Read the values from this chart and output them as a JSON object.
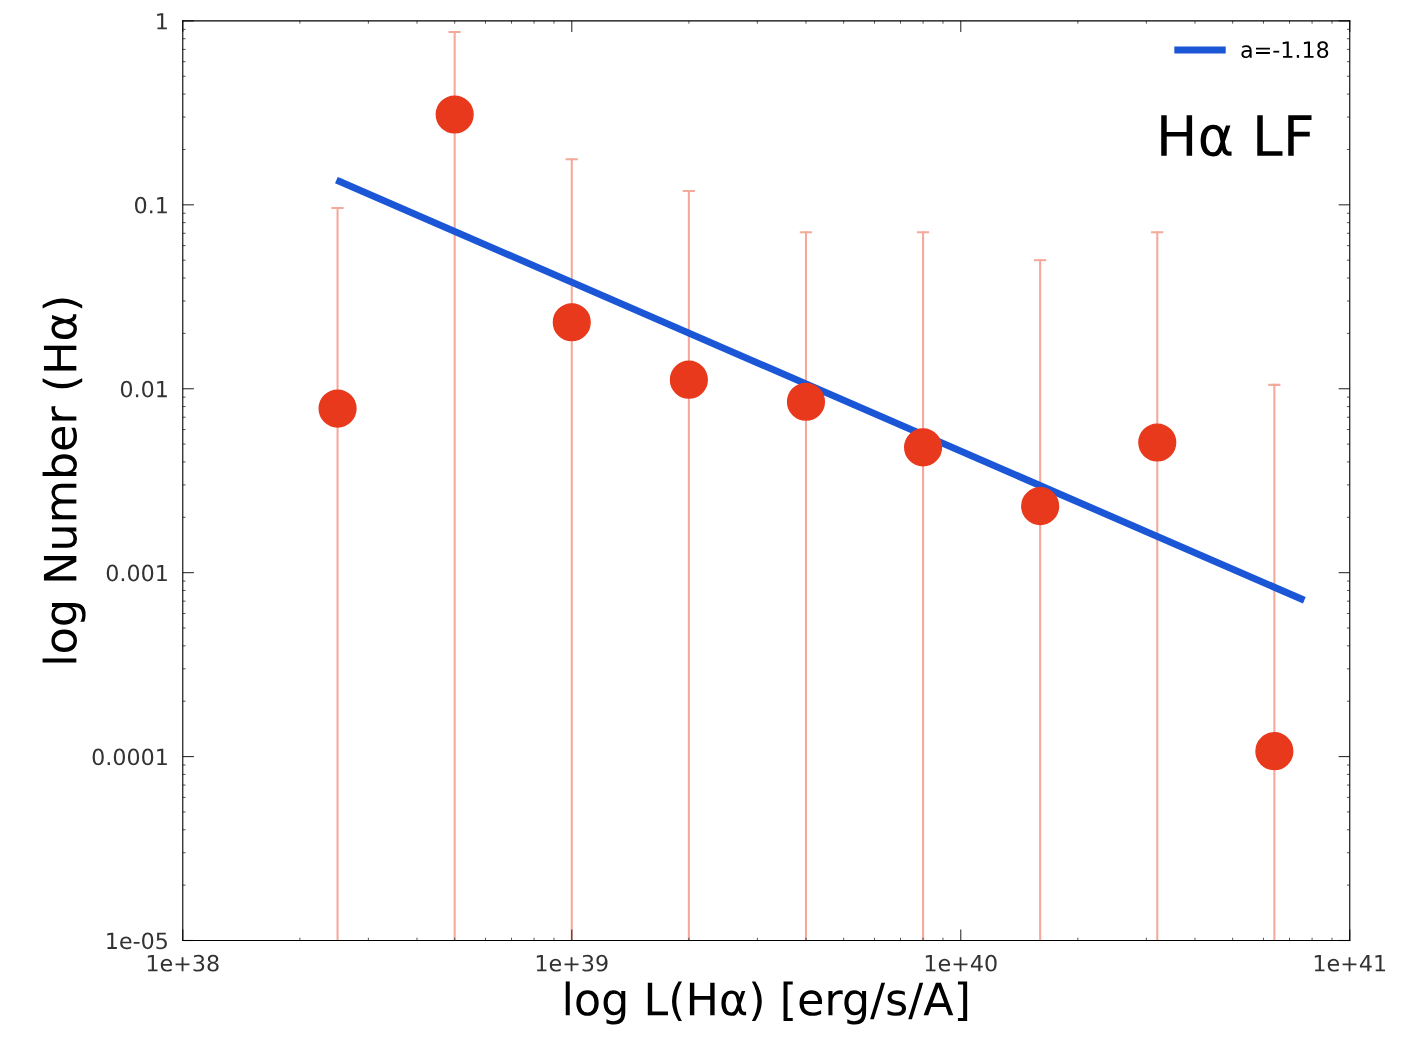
{
  "chart_data": {
    "type": "scatter",
    "xlabel": "log L(Hα) [erg/s/A]",
    "ylabel": "log Number (Hα)",
    "log": "xy",
    "grid": false,
    "legend": "top right",
    "annotations": [
      "Hα LF"
    ],
    "xlim": [
      1e+38,
      1e+41
    ],
    "xticks": [
      {
        "value": 1e+38,
        "label": "1e+38"
      },
      {
        "value": 1e+39,
        "label": "1e+39"
      },
      {
        "value": 1e+40,
        "label": "1e+40"
      },
      {
        "value": 1e+41,
        "label": "1e+41"
      }
    ],
    "ylim": [
      1e-05,
      1
    ],
    "yticks": [
      1,
      0.1,
      0.01,
      0.001,
      0.0001,
      {
        "value": 1e-05,
        "label": "1e-05"
      }
    ],
    "series": [
      {
        "marker": "circle",
        "color": "#e8391c",
        "x": [
          2.5e+38,
          5e+38,
          1e+39,
          2e+39,
          4e+39,
          8e+39,
          1.6e+40,
          3.2e+40,
          6.4e+40
        ],
        "values": [
          0.0078,
          0.31,
          0.023,
          0.0112,
          0.0085,
          0.0048,
          0.0023,
          0.0051,
          0.000107
        ],
        "errors": [
          [
            1e-05,
            0.096
          ],
          [
            1e-05,
            0.87
          ],
          [
            1e-05,
            0.177
          ],
          [
            1e-05,
            0.119
          ],
          [
            1e-05,
            0.071
          ],
          [
            1e-05,
            0.071
          ],
          [
            1e-05,
            0.05
          ],
          [
            1e-05,
            0.071
          ],
          [
            1e-05,
            0.0105
          ]
        ]
      },
      {
        "type": "line",
        "name": "a=-1.18",
        "color": "#1a56d6",
        "line_style": "solid",
        "marker": "none",
        "x": [
          2.53e+38,
          7.5e+40
        ],
        "values": [
          0.134,
          0.00072
        ]
      }
    ]
  }
}
